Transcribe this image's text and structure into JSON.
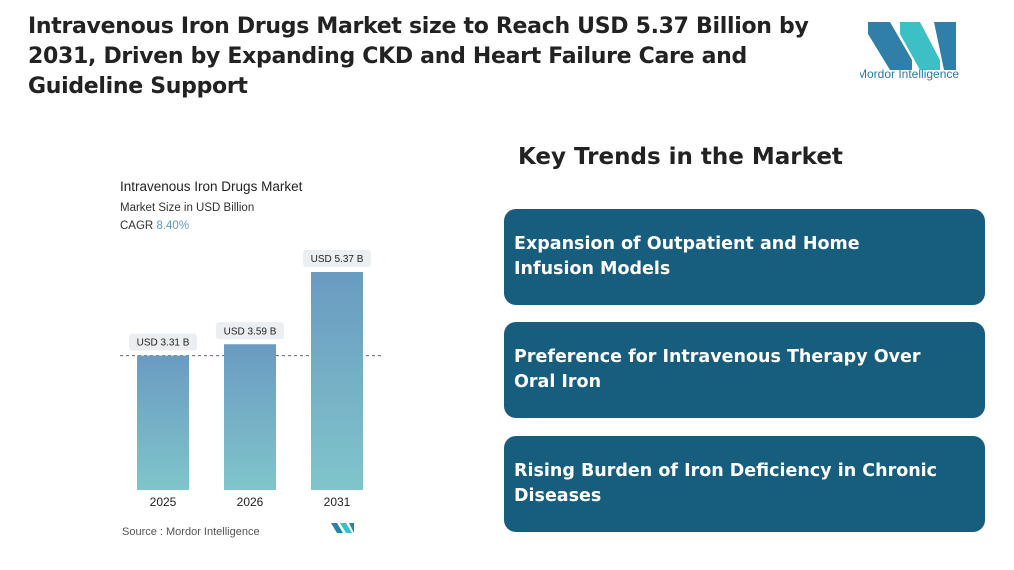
{
  "header": {
    "title": "Intravenous Iron Drugs Market size to Reach USD 5.37 Billion by 2031, Driven by Expanding CKD and Heart Failure Care and Guideline Support",
    "logo_text": "Mordor Intelligence"
  },
  "chart_data": {
    "type": "bar",
    "title": "Intravenous Iron Drugs Market",
    "subtitle": "Market Size in USD Billion",
    "cagr_label": "CAGR",
    "cagr_value": "8.40%",
    "categories": [
      "2025",
      "2026",
      "2031"
    ],
    "values": [
      3.31,
      3.59,
      5.37
    ],
    "value_labels": [
      "USD 3.31 B",
      "USD 3.59 B",
      "USD 5.37 B"
    ],
    "color_top": "#6a9bc1",
    "color_bottom": "#80c5cb",
    "source": "Source : Mordor Intelligence"
  },
  "trends": {
    "title": "Key Trends in the Market",
    "items": [
      "Expansion of Outpatient and Home Infusion Models",
      "Preference for Intravenous Therapy Over Oral Iron",
      "Rising Burden of Iron Deficiency in Chronic Diseases"
    ]
  }
}
